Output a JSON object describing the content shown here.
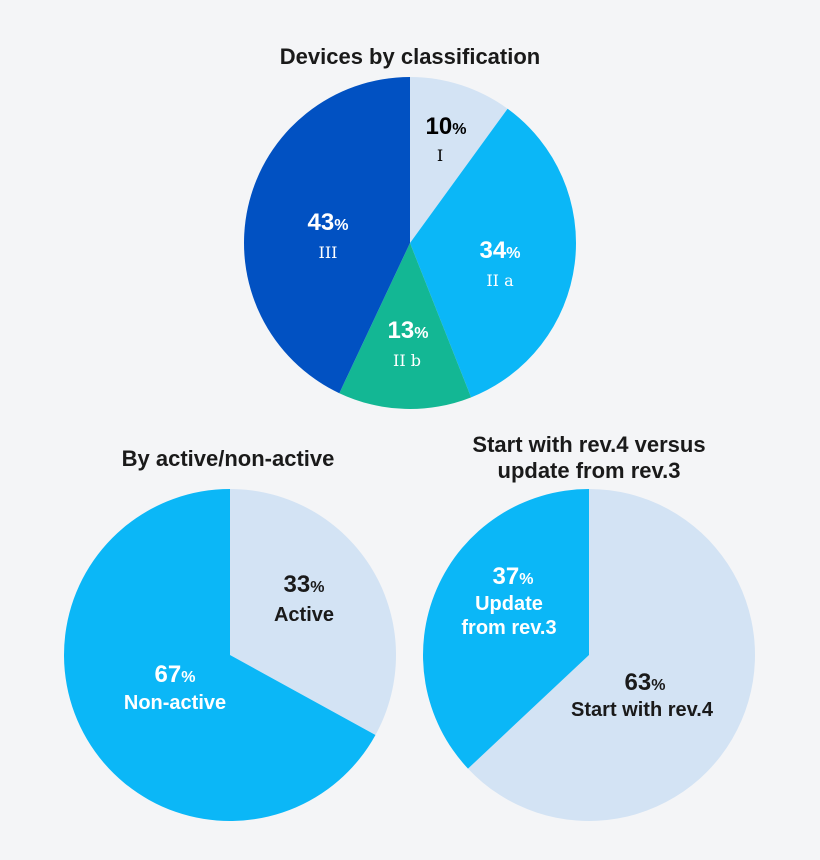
{
  "chart_data": [
    {
      "type": "pie",
      "title": "Devices by classification",
      "start": "top",
      "direction": "clockwise",
      "slices": [
        {
          "label": "I",
          "value": 10,
          "pct_text": "10",
          "color": "#d3e3f4",
          "text_color": "#1a1a1a"
        },
        {
          "label": "II a",
          "value": 34,
          "pct_text": "34",
          "color": "#0bb7f7",
          "text_color": "#ffffff"
        },
        {
          "label": "II b",
          "value": 13,
          "pct_text": "13",
          "color": "#13b794",
          "text_color": "#ffffff"
        },
        {
          "label": "III",
          "value": 43,
          "pct_text": "43",
          "color": "#0151c2",
          "text_color": "#ffffff"
        }
      ]
    },
    {
      "type": "pie",
      "title": "By active/non-active",
      "start": "top",
      "direction": "clockwise",
      "slices": [
        {
          "label": "Active",
          "value": 33,
          "pct_text": "33",
          "color": "#d3e3f4",
          "text_color": "#1a1a1a"
        },
        {
          "label": "Non-active",
          "value": 67,
          "pct_text": "67",
          "color": "#0bb7f7",
          "text_color": "#ffffff"
        }
      ]
    },
    {
      "type": "pie",
      "title_lines": [
        "Start with rev.4 versus",
        "update from rev.3"
      ],
      "start": "top",
      "direction": "clockwise",
      "slices": [
        {
          "label": "Start with rev.4",
          "value": 63,
          "pct_text": "63",
          "color": "#d3e3f4",
          "text_color": "#1a1a1a"
        },
        {
          "label_lines": [
            "Update",
            "from rev.3"
          ],
          "value": 37,
          "pct_text": "37",
          "color": "#0bb7f7",
          "text_color": "#ffffff"
        }
      ]
    }
  ],
  "percent_sign": "%"
}
